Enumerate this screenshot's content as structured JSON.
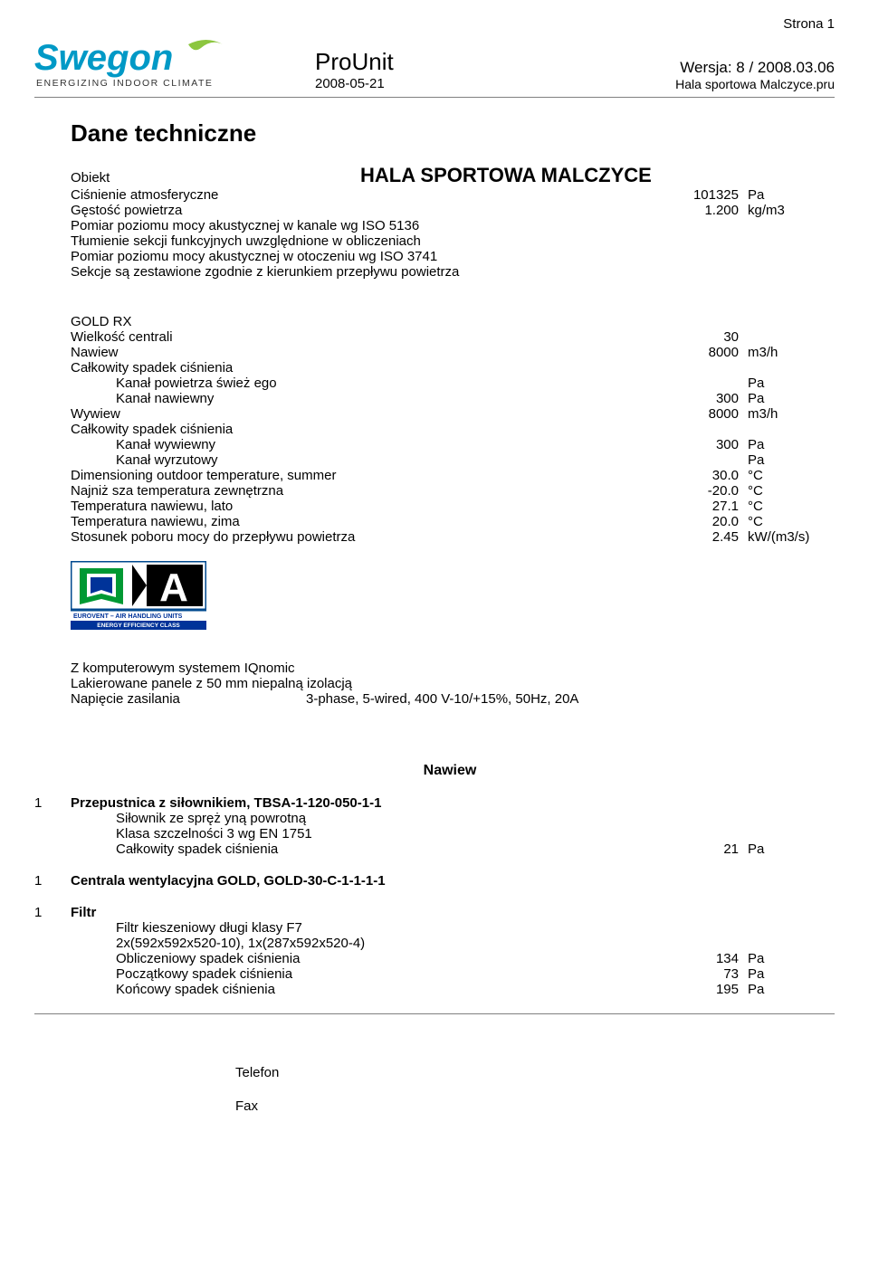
{
  "page_marker": "Strona 1",
  "logo": {
    "brand": "Swegon",
    "tagline": "ENERGIZING INDOOR CLIMATE",
    "leaf_color": "#8cc63f",
    "text_color": "#0099c6"
  },
  "header": {
    "app_title": "ProUnit",
    "date": "2008-05-21",
    "version_label": "Wersja: 8 / 2008.03.06",
    "filename": "Hala sportowa Malczyce.pru"
  },
  "main_heading": "Dane techniczne",
  "object": {
    "label": "Obiekt",
    "title": "HALA SPORTOWA MALCZYCE"
  },
  "env": [
    {
      "label": "Ciśnienie atmosferyczne",
      "value": "101325",
      "unit": "Pa"
    },
    {
      "label": "Gęstość powietrza",
      "value": "1.200",
      "unit": "kg/m3"
    }
  ],
  "notes": [
    "Pomiar poziomu mocy akustycznej w kanale wg ISO 5136",
    "Tłumienie sekcji funkcyjnych uwzględnione w obliczeniach",
    "Pomiar poziomu mocy akustycznej w otoczeniu wg ISO 3741",
    "Sekcje są zestawione zgodnie z kierunkiem przepływu powietrza"
  ],
  "gold": {
    "title": "GOLD RX",
    "rows": [
      {
        "label": "Wielkość centrali",
        "value": "30",
        "unit": "",
        "indent": 0
      },
      {
        "label": "Nawiew",
        "value": "8000",
        "unit": "m3/h",
        "indent": 0
      },
      {
        "label": "Całkowity spadek ciśnienia",
        "value": "",
        "unit": "",
        "indent": 0
      },
      {
        "label": "Kanał powietrza śwież ego",
        "value": "",
        "unit": "Pa",
        "indent": 1
      },
      {
        "label": "Kanał nawiewny",
        "value": "300",
        "unit": "Pa",
        "indent": 1
      },
      {
        "label": "Wywiew",
        "value": "8000",
        "unit": "m3/h",
        "indent": 0
      },
      {
        "label": "Całkowity spadek ciśnienia",
        "value": "",
        "unit": "",
        "indent": 0
      },
      {
        "label": "Kanał wywiewny",
        "value": "300",
        "unit": "Pa",
        "indent": 1
      },
      {
        "label": "Kanał wyrzutowy",
        "value": "",
        "unit": "Pa",
        "indent": 1
      },
      {
        "label": "Dimensioning outdoor temperature, summer",
        "value": "30.0",
        "unit": "°C",
        "indent": 0
      },
      {
        "label": "Najniż sza temperatura zewnętrzna",
        "value": "-20.0",
        "unit": "°C",
        "indent": 0
      },
      {
        "label": "Temperatura nawiewu, lato",
        "value": "27.1",
        "unit": "°C",
        "indent": 0
      },
      {
        "label": "Temperatura nawiewu, zima",
        "value": "20.0",
        "unit": "°C",
        "indent": 0
      },
      {
        "label": "Stosunek poboru mocy do przepływu powietrza",
        "value": "2.45",
        "unit": "kW/(m3/s)",
        "indent": 0
      }
    ]
  },
  "cert": {
    "letter": "A",
    "org_line": "EUROVENT – AIR HANDLING UNITS",
    "class_line": "ENERGY EFFICIENCY CLASS",
    "a_bg": "#000000",
    "a_fg": "#ffffff",
    "euro_green": "#009933",
    "euro_blue": "#003399",
    "border": "#004a8f"
  },
  "system": {
    "line1": "Z komputerowym systemem IQnomic",
    "line2": "Lakierowane panele z 50 mm niepalną izolacją",
    "supply_label": "Napięcie zasilania",
    "supply_value": "3-phase, 5-wired, 400 V-10/+15%, 50Hz, 20A"
  },
  "supply_heading": "Nawiew",
  "items": [
    {
      "num": "1",
      "title": "Przepustnica z siłownikiem, TBSA-1-120-050-1-1",
      "lines": [
        {
          "label": "Siłownik ze spręż yną powrotną",
          "value": "",
          "unit": ""
        },
        {
          "label": "Klasa szczelności 3 wg EN 1751",
          "value": "",
          "unit": ""
        },
        {
          "label": "Całkowity spadek ciśnienia",
          "value": "21",
          "unit": "Pa"
        }
      ]
    },
    {
      "num": "1",
      "title": "Centrala wentylacyjna GOLD, GOLD-30-C-1-1-1-1",
      "lines": []
    },
    {
      "num": "1",
      "title": "Filtr",
      "lines": [
        {
          "label": "Filtr kieszeniowy długi klasy F7",
          "value": "",
          "unit": ""
        },
        {
          "label": "2x(592x592x520-10), 1x(287x592x520-4)",
          "value": "",
          "unit": ""
        },
        {
          "label": "Obliczeniowy spadek ciśnienia",
          "value": "134",
          "unit": "Pa"
        },
        {
          "label": "Początkowy spadek ciśnienia",
          "value": "73",
          "unit": "Pa"
        },
        {
          "label": "Końcowy spadek ciśnienia",
          "value": "195",
          "unit": "Pa"
        }
      ]
    }
  ],
  "footer": {
    "tel": "Telefon",
    "fax": "Fax"
  }
}
